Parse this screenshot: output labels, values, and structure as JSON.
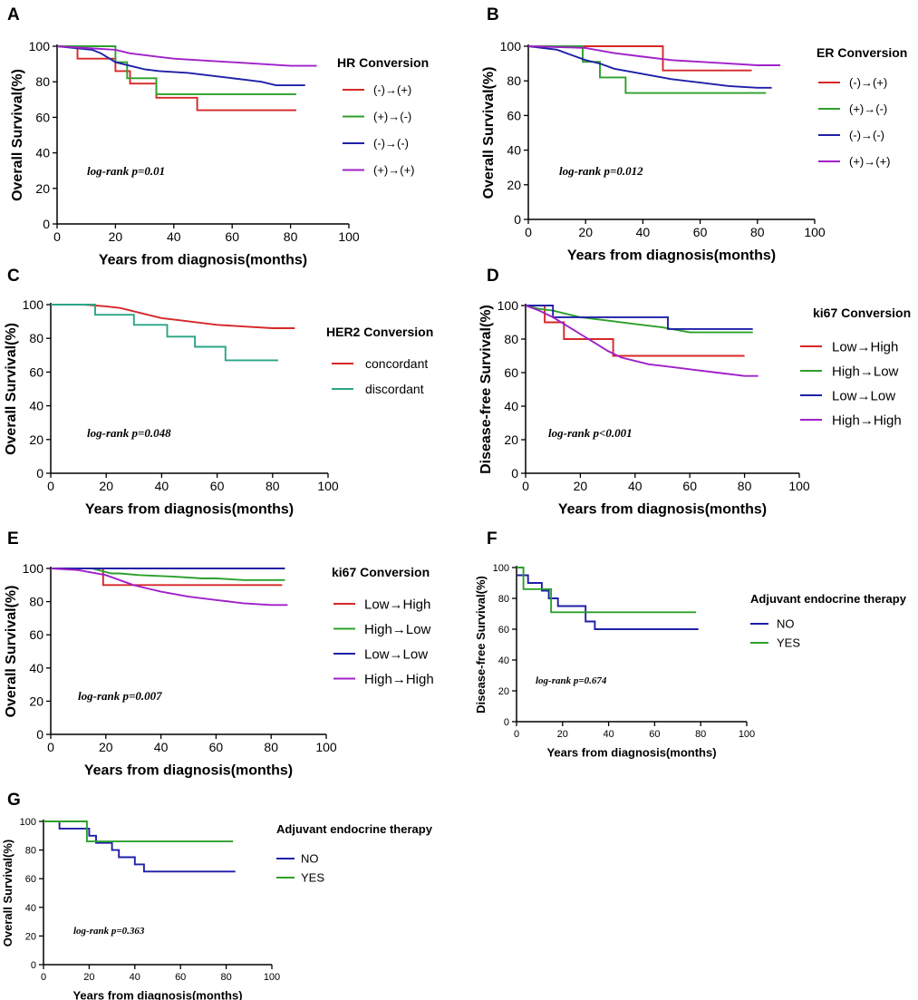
{
  "chart_data": [
    {
      "panel": "A",
      "type": "line",
      "title": "HR Conversion",
      "xlabel": "Years from diagnosis(months)",
      "ylabel": "Overall Survival(%)",
      "xlim": [
        0,
        100
      ],
      "ylim": [
        0,
        100
      ],
      "xticks": [
        0,
        20,
        40,
        60,
        80,
        100
      ],
      "yticks": [
        0,
        20,
        40,
        60,
        80,
        100
      ],
      "legend_title": "HR Conversion",
      "legend_position": "right",
      "annotation": "log-rank p=0.01",
      "series": [
        {
          "name": "(-)→(+)",
          "color": "#d62728",
          "x": [
            0,
            7,
            7,
            20,
            20,
            25,
            25,
            34,
            34,
            43,
            43,
            48,
            48,
            82
          ],
          "y": [
            100,
            100,
            93,
            93,
            86,
            86,
            79,
            79,
            71,
            71,
            71,
            71,
            64,
            64
          ]
        },
        {
          "name": "(+)→(-)",
          "color": "#2ca02c",
          "x": [
            0,
            20,
            20,
            24,
            24,
            34,
            34,
            82
          ],
          "y": [
            100,
            100,
            91,
            91,
            82,
            82,
            73,
            73
          ]
        },
        {
          "name": "(-)→(-)",
          "color": "#1f1fa8",
          "x": [
            0,
            12,
            15,
            18,
            20,
            25,
            30,
            35,
            45,
            55,
            65,
            70,
            75,
            85
          ],
          "y": [
            100,
            98,
            96,
            93,
            91,
            89,
            87,
            86,
            85,
            83,
            81,
            80,
            78,
            78
          ]
        },
        {
          "name": "(+)→(+)",
          "color": "#a020c8",
          "x": [
            0,
            20,
            25,
            30,
            35,
            40,
            50,
            60,
            70,
            80,
            89
          ],
          "y": [
            100,
            98,
            96,
            95,
            94,
            93,
            92,
            91,
            90,
            89,
            89
          ]
        }
      ]
    },
    {
      "panel": "B",
      "type": "line",
      "title": "ER Conversion",
      "xlabel": "Years from diagnosis(months)",
      "ylabel": "Overall Survival(%)",
      "xlim": [
        0,
        100
      ],
      "ylim": [
        0,
        100
      ],
      "xticks": [
        0,
        20,
        40,
        60,
        80,
        100
      ],
      "yticks": [
        0,
        20,
        40,
        60,
        80,
        100
      ],
      "legend_title": "ER Conversion",
      "legend_position": "right",
      "annotation": "log-rank p=0.012",
      "series": [
        {
          "name": "(-)→(+)",
          "color": "#d62728",
          "x": [
            0,
            47,
            47,
            78
          ],
          "y": [
            100,
            100,
            86,
            86
          ]
        },
        {
          "name": "(+)→(-)",
          "color": "#2ca02c",
          "x": [
            0,
            19,
            19,
            25,
            25,
            34,
            34,
            83
          ],
          "y": [
            100,
            100,
            91,
            91,
            82,
            82,
            73,
            73
          ]
        },
        {
          "name": "(-)→(-)",
          "color": "#1f1fa8",
          "x": [
            0,
            10,
            15,
            20,
            25,
            30,
            40,
            50,
            60,
            70,
            80,
            85
          ],
          "y": [
            100,
            98,
            95,
            92,
            90,
            87,
            84,
            81,
            79,
            77,
            76,
            76
          ]
        },
        {
          "name": "(+)→(+)",
          "color": "#a020c8",
          "x": [
            0,
            20,
            30,
            40,
            50,
            60,
            70,
            80,
            88
          ],
          "y": [
            100,
            99,
            96,
            94,
            92,
            91,
            90,
            89,
            89
          ]
        }
      ]
    },
    {
      "panel": "C",
      "type": "line",
      "title": "HER2 Conversion",
      "xlabel": "Years from diagnosis(months)",
      "ylabel": "Overall Survival(%)",
      "xlim": [
        0,
        100
      ],
      "ylim": [
        0,
        100
      ],
      "xticks": [
        0,
        20,
        40,
        60,
        80,
        100
      ],
      "yticks": [
        0,
        20,
        40,
        60,
        80,
        100
      ],
      "legend_title": "HER2 Conversion",
      "legend_position": "right",
      "annotation": "log-rank p=0.048",
      "series": [
        {
          "name": "concordant",
          "color": "#d62728",
          "x": [
            0,
            12,
            20,
            25,
            30,
            35,
            40,
            45,
            50,
            60,
            70,
            80,
            88
          ],
          "y": [
            100,
            100,
            99,
            98,
            96,
            94,
            92,
            91,
            90,
            88,
            87,
            86,
            86
          ]
        },
        {
          "name": "discordant",
          "color": "#2aa586",
          "x": [
            0,
            16,
            16,
            30,
            30,
            42,
            42,
            52,
            52,
            63,
            63,
            82
          ],
          "y": [
            100,
            100,
            94,
            94,
            88,
            88,
            81,
            81,
            75,
            75,
            67,
            67
          ]
        }
      ]
    },
    {
      "panel": "D",
      "type": "line",
      "title": "ki67 Conversion",
      "xlabel": "Years from diagnosis(months)",
      "ylabel": "Disease-free Survival(%)",
      "xlim": [
        0,
        100
      ],
      "ylim": [
        0,
        100
      ],
      "xticks": [
        0,
        20,
        40,
        60,
        80,
        100
      ],
      "yticks": [
        0,
        20,
        40,
        60,
        80,
        100
      ],
      "legend_title": "ki67 Conversion",
      "legend_position": "right",
      "annotation": "log-rank p<0.001",
      "series": [
        {
          "name": "Low→High",
          "color": "#d62728",
          "x": [
            0,
            7,
            7,
            14,
            14,
            32,
            32,
            80
          ],
          "y": [
            100,
            100,
            90,
            90,
            80,
            80,
            70,
            70
          ]
        },
        {
          "name": "High→Low",
          "color": "#2ca02c",
          "x": [
            0,
            5,
            10,
            15,
            20,
            30,
            40,
            50,
            60,
            83
          ],
          "y": [
            100,
            98,
            97,
            95,
            93,
            91,
            89,
            87,
            84,
            84
          ]
        },
        {
          "name": "Low→Low",
          "color": "#1f1fa8",
          "x": [
            0,
            10,
            10,
            52,
            52,
            83
          ],
          "y": [
            100,
            100,
            93,
            93,
            86,
            86
          ]
        },
        {
          "name": "High→High",
          "color": "#a020c8",
          "x": [
            0,
            5,
            10,
            15,
            20,
            25,
            30,
            35,
            40,
            45,
            50,
            60,
            70,
            80,
            85
          ],
          "y": [
            100,
            97,
            93,
            88,
            83,
            78,
            73,
            69,
            67,
            65,
            64,
            62,
            60,
            58,
            58
          ]
        }
      ]
    },
    {
      "panel": "E",
      "type": "line",
      "title": "ki67 Conversion",
      "xlabel": "Years from diagnosis(months)",
      "ylabel": "Overall Survival(%)",
      "xlim": [
        0,
        100
      ],
      "ylim": [
        0,
        100
      ],
      "xticks": [
        0,
        20,
        40,
        60,
        80,
        100
      ],
      "yticks": [
        0,
        20,
        40,
        60,
        80,
        100
      ],
      "legend_title": "ki67 Conversion",
      "legend_position": "right",
      "annotation": "log-rank p=0.007",
      "series": [
        {
          "name": "Low→High",
          "color": "#d62728",
          "x": [
            0,
            19,
            19,
            84
          ],
          "y": [
            100,
            100,
            90,
            90
          ]
        },
        {
          "name": "High→Low",
          "color": "#2ca02c",
          "x": [
            0,
            15,
            22,
            25,
            32,
            45,
            55,
            60,
            70,
            85
          ],
          "y": [
            100,
            100,
            97,
            97,
            96,
            95,
            94,
            94,
            93,
            93
          ]
        },
        {
          "name": "Low→Low",
          "color": "#1f1fa8",
          "x": [
            0,
            85
          ],
          "y": [
            100,
            100
          ]
        },
        {
          "name": "High→High",
          "color": "#a020c8",
          "x": [
            0,
            10,
            20,
            25,
            30,
            35,
            40,
            50,
            60,
            70,
            80,
            86
          ],
          "y": [
            100,
            99,
            96,
            93,
            90,
            88,
            86,
            83,
            81,
            79,
            78,
            78
          ]
        }
      ]
    },
    {
      "panel": "F",
      "type": "line",
      "title": "Adjuvant endocrine therapy",
      "xlabel": "Years from diagnosis(months)",
      "ylabel": "Disease-free Survival(%)",
      "xlim": [
        0,
        100
      ],
      "ylim": [
        0,
        100
      ],
      "xticks": [
        0,
        20,
        40,
        60,
        80,
        100
      ],
      "yticks": [
        0,
        20,
        40,
        60,
        80,
        100
      ],
      "legend_title": "Adjuvant endocrine therapy",
      "legend_position": "right",
      "annotation": "log-rank p=0.674",
      "series": [
        {
          "name": "NO",
          "color": "#1f1fa8",
          "x": [
            0,
            5,
            5,
            11,
            11,
            14,
            14,
            18,
            18,
            30,
            30,
            34,
            34,
            79
          ],
          "y": [
            95,
            95,
            90,
            90,
            85,
            85,
            80,
            80,
            75,
            75,
            65,
            65,
            60,
            60
          ]
        },
        {
          "name": "YES",
          "color": "#2ca02c",
          "x": [
            0,
            3,
            3,
            15,
            15,
            30,
            30,
            78
          ],
          "y": [
            100,
            100,
            86,
            86,
            71,
            71,
            71,
            71
          ]
        }
      ]
    },
    {
      "panel": "G",
      "type": "line",
      "title": "Adjuvant endocrine therapy",
      "xlabel": "Years from diagnosis(months)",
      "ylabel": "Overall Survival(%)",
      "xlim": [
        0,
        100
      ],
      "ylim": [
        0,
        100
      ],
      "xticks": [
        0,
        20,
        40,
        60,
        80,
        100
      ],
      "yticks": [
        0,
        20,
        40,
        60,
        80,
        100
      ],
      "legend_title": "Adjuvant endocrine therapy",
      "legend_position": "right",
      "annotation": "log-rank p=0.363",
      "series": [
        {
          "name": "NO",
          "color": "#1f1fa8",
          "x": [
            0,
            7,
            7,
            20,
            20,
            23,
            23,
            30,
            30,
            33,
            33,
            40,
            40,
            44,
            44,
            47,
            47,
            84
          ],
          "y": [
            100,
            100,
            95,
            95,
            90,
            90,
            85,
            85,
            80,
            80,
            75,
            75,
            70,
            70,
            65,
            65,
            65,
            65
          ]
        },
        {
          "name": "YES",
          "color": "#2ca02c",
          "x": [
            0,
            19,
            19,
            83
          ],
          "y": [
            100,
            100,
            86,
            86
          ]
        }
      ]
    }
  ]
}
